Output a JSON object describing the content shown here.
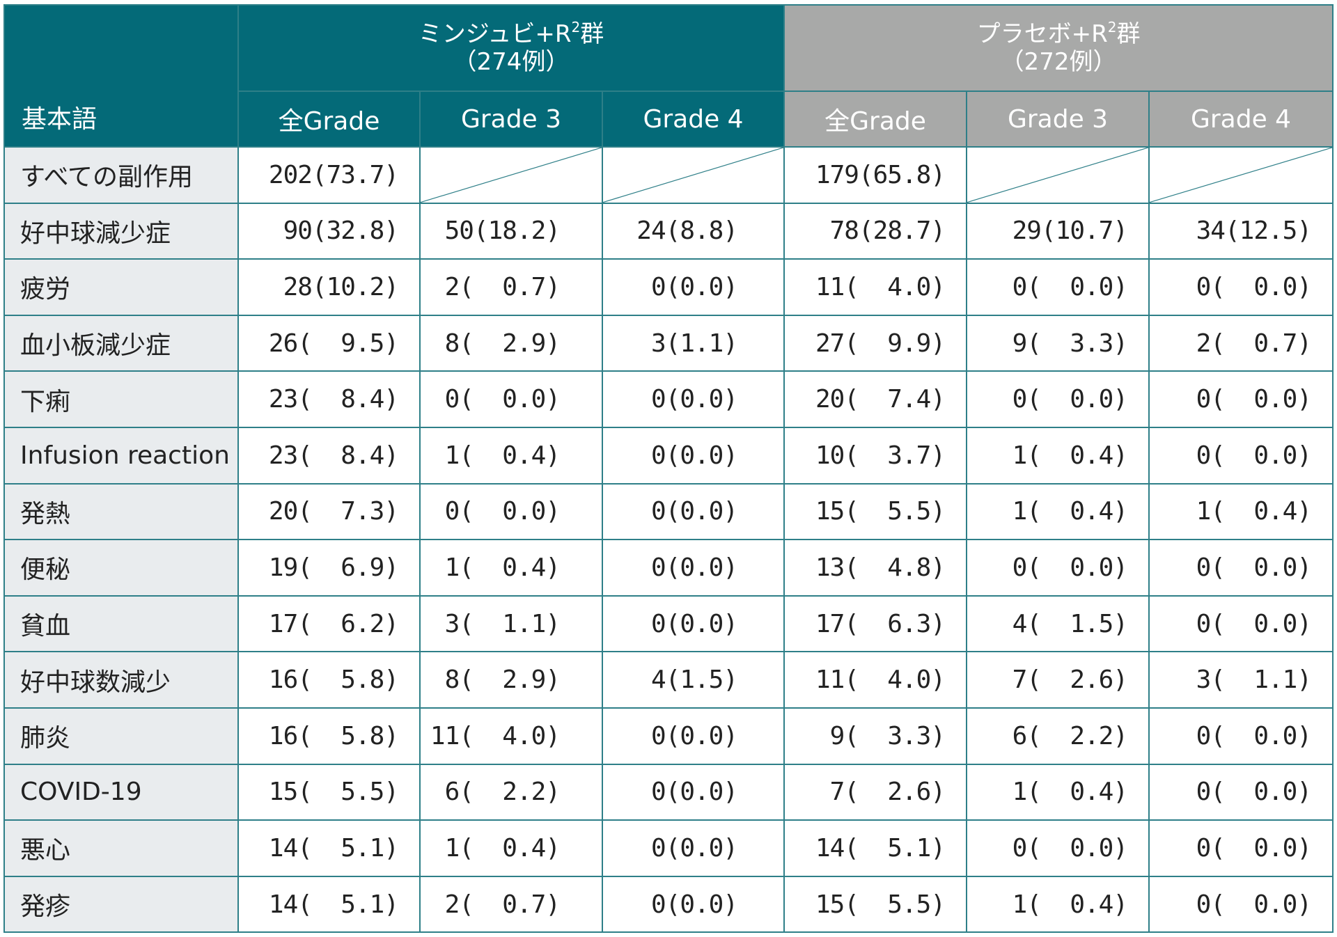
{
  "header": {
    "term_label": "基本語",
    "group1": {
      "line1": "ミンジュビ+R",
      "sup": "2",
      "line1_suffix": "群",
      "line2": "（274例）"
    },
    "group2": {
      "line1": "プラセボ+R",
      "sup": "2",
      "line1_suffix": "群",
      "line2": "（272例）"
    },
    "grades": [
      "全Grade",
      "Grade 3",
      "Grade 4",
      "全Grade",
      "Grade 3",
      "Grade 4"
    ]
  },
  "colors": {
    "teal_header": "#046a78",
    "gray_header": "#a8a9a8",
    "border": "#2e7f88",
    "term_bg": "#e9ecee"
  },
  "rows": [
    {
      "term": "すべての副作用",
      "c": [
        "202(73.7)",
        "",
        "",
        "179(65.8)",
        "",
        ""
      ]
    },
    {
      "term": "好中球減少症",
      "c": [
        "90(32.8)",
        "50(18.2)",
        "24(8.8)",
        "78(28.7)",
        "29(10.7)",
        "34(12.5)"
      ]
    },
    {
      "term": "疲労",
      "c": [
        "28(10.2)",
        "2(  0.7)",
        "0(0.0)",
        "11(  4.0)",
        "0(  0.0)",
        "0(  0.0)"
      ]
    },
    {
      "term": "血小板減少症",
      "c": [
        "26(  9.5)",
        "8(  2.9)",
        "3(1.1)",
        "27(  9.9)",
        "9(  3.3)",
        "2(  0.7)"
      ]
    },
    {
      "term": "下痢",
      "c": [
        "23(  8.4)",
        "0(  0.0)",
        "0(0.0)",
        "20(  7.4)",
        "0(  0.0)",
        "0(  0.0)"
      ]
    },
    {
      "term": "Infusion reaction",
      "c": [
        "23(  8.4)",
        "1(  0.4)",
        "0(0.0)",
        "10(  3.7)",
        "1(  0.4)",
        "0(  0.0)"
      ]
    },
    {
      "term": "発熱",
      "c": [
        "20(  7.3)",
        "0(  0.0)",
        "0(0.0)",
        "15(  5.5)",
        "1(  0.4)",
        "1(  0.4)"
      ]
    },
    {
      "term": "便秘",
      "c": [
        "19(  6.9)",
        "1(  0.4)",
        "0(0.0)",
        "13(  4.8)",
        "0(  0.0)",
        "0(  0.0)"
      ]
    },
    {
      "term": "貧血",
      "c": [
        "17(  6.2)",
        "3(  1.1)",
        "0(0.0)",
        "17(  6.3)",
        "4(  1.5)",
        "0(  0.0)"
      ]
    },
    {
      "term": "好中球数減少",
      "c": [
        "16(  5.8)",
        "8(  2.9)",
        "4(1.5)",
        "11(  4.0)",
        "7(  2.6)",
        "3(  1.1)"
      ]
    },
    {
      "term": "肺炎",
      "c": [
        "16(  5.8)",
        "11(  4.0)",
        "0(0.0)",
        "9(  3.3)",
        "6(  2.2)",
        "0(  0.0)"
      ]
    },
    {
      "term": "COVID-19",
      "c": [
        "15(  5.5)",
        "6(  2.2)",
        "0(0.0)",
        "7(  2.6)",
        "1(  0.4)",
        "0(  0.0)"
      ]
    },
    {
      "term": "悪心",
      "c": [
        "14(  5.1)",
        "1(  0.4)",
        "0(0.0)",
        "14(  5.1)",
        "0(  0.0)",
        "0(  0.0)"
      ]
    },
    {
      "term": "発疹",
      "c": [
        "14(  5.1)",
        "2(  0.7)",
        "0(0.0)",
        "15(  5.5)",
        "1(  0.4)",
        "0(  0.0)"
      ]
    }
  ]
}
